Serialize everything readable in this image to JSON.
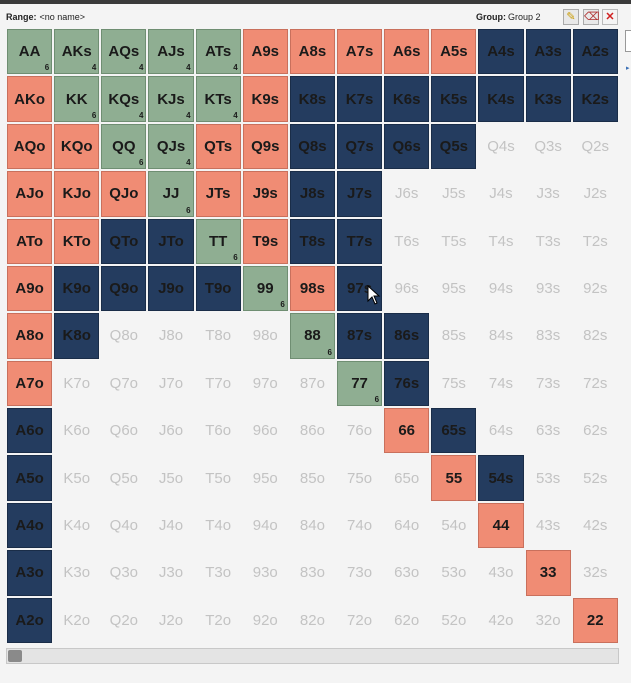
{
  "toolbar": {
    "range_label": "Range:",
    "range_value": "<no name>",
    "group_label": "Group:",
    "group_value": "Group 2"
  },
  "icons": {
    "edit": "pencil-icon",
    "clear": "eraser-icon",
    "close": "close-icon"
  },
  "colors": {
    "green": "#8fae92",
    "salmon": "#f08c74",
    "navy": "#243c5f",
    "empty_text": "#c3c3c3"
  },
  "grid": {
    "rows": [
      [
        [
          "AA",
          "green",
          "6"
        ],
        [
          "AKs",
          "green",
          "4"
        ],
        [
          "AQs",
          "green",
          "4"
        ],
        [
          "AJs",
          "green",
          "4"
        ],
        [
          "ATs",
          "green",
          "4"
        ],
        [
          "A9s",
          "salmon",
          ""
        ],
        [
          "A8s",
          "salmon",
          ""
        ],
        [
          "A7s",
          "salmon",
          ""
        ],
        [
          "A6s",
          "salmon",
          ""
        ],
        [
          "A5s",
          "salmon",
          ""
        ],
        [
          "A4s",
          "navy",
          ""
        ],
        [
          "A3s",
          "navy",
          ""
        ],
        [
          "A2s",
          "navy",
          ""
        ]
      ],
      [
        [
          "AKo",
          "salmon",
          ""
        ],
        [
          "KK",
          "green",
          "6"
        ],
        [
          "KQs",
          "green",
          "4"
        ],
        [
          "KJs",
          "green",
          "4"
        ],
        [
          "KTs",
          "green",
          "4"
        ],
        [
          "K9s",
          "salmon",
          ""
        ],
        [
          "K8s",
          "navy",
          ""
        ],
        [
          "K7s",
          "navy",
          ""
        ],
        [
          "K6s",
          "navy",
          ""
        ],
        [
          "K5s",
          "navy",
          ""
        ],
        [
          "K4s",
          "navy",
          ""
        ],
        [
          "K3s",
          "navy",
          ""
        ],
        [
          "K2s",
          "navy",
          ""
        ]
      ],
      [
        [
          "AQo",
          "salmon",
          ""
        ],
        [
          "KQo",
          "salmon",
          ""
        ],
        [
          "QQ",
          "green",
          "6"
        ],
        [
          "QJs",
          "green",
          "4"
        ],
        [
          "QTs",
          "salmon",
          ""
        ],
        [
          "Q9s",
          "salmon",
          ""
        ],
        [
          "Q8s",
          "navy",
          ""
        ],
        [
          "Q7s",
          "navy",
          ""
        ],
        [
          "Q6s",
          "navy",
          ""
        ],
        [
          "Q5s",
          "navy",
          ""
        ],
        [
          "Q4s",
          "empty",
          ""
        ],
        [
          "Q3s",
          "empty",
          ""
        ],
        [
          "Q2s",
          "empty",
          ""
        ]
      ],
      [
        [
          "AJo",
          "salmon",
          ""
        ],
        [
          "KJo",
          "salmon",
          ""
        ],
        [
          "QJo",
          "salmon",
          ""
        ],
        [
          "JJ",
          "green",
          "6"
        ],
        [
          "JTs",
          "salmon",
          ""
        ],
        [
          "J9s",
          "salmon",
          ""
        ],
        [
          "J8s",
          "navy",
          ""
        ],
        [
          "J7s",
          "navy",
          ""
        ],
        [
          "J6s",
          "empty",
          ""
        ],
        [
          "J5s",
          "empty",
          ""
        ],
        [
          "J4s",
          "empty",
          ""
        ],
        [
          "J3s",
          "empty",
          ""
        ],
        [
          "J2s",
          "empty",
          ""
        ]
      ],
      [
        [
          "ATo",
          "salmon",
          ""
        ],
        [
          "KTo",
          "salmon",
          ""
        ],
        [
          "QTo",
          "navy",
          ""
        ],
        [
          "JTo",
          "navy",
          ""
        ],
        [
          "TT",
          "green",
          "6"
        ],
        [
          "T9s",
          "salmon",
          ""
        ],
        [
          "T8s",
          "navy",
          ""
        ],
        [
          "T7s",
          "navy",
          ""
        ],
        [
          "T6s",
          "empty",
          ""
        ],
        [
          "T5s",
          "empty",
          ""
        ],
        [
          "T4s",
          "empty",
          ""
        ],
        [
          "T3s",
          "empty",
          ""
        ],
        [
          "T2s",
          "empty",
          ""
        ]
      ],
      [
        [
          "A9o",
          "salmon",
          ""
        ],
        [
          "K9o",
          "navy",
          ""
        ],
        [
          "Q9o",
          "navy",
          ""
        ],
        [
          "J9o",
          "navy",
          ""
        ],
        [
          "T9o",
          "navy",
          ""
        ],
        [
          "99",
          "green",
          "6"
        ],
        [
          "98s",
          "salmon",
          ""
        ],
        [
          "97s",
          "navy",
          ""
        ],
        [
          "96s",
          "empty",
          ""
        ],
        [
          "95s",
          "empty",
          ""
        ],
        [
          "94s",
          "empty",
          ""
        ],
        [
          "93s",
          "empty",
          ""
        ],
        [
          "92s",
          "empty",
          ""
        ]
      ],
      [
        [
          "A8o",
          "salmon",
          ""
        ],
        [
          "K8o",
          "navy",
          ""
        ],
        [
          "Q8o",
          "empty",
          ""
        ],
        [
          "J8o",
          "empty",
          ""
        ],
        [
          "T8o",
          "empty",
          ""
        ],
        [
          "98o",
          "empty",
          ""
        ],
        [
          "88",
          "green",
          "6"
        ],
        [
          "87s",
          "navy",
          ""
        ],
        [
          "86s",
          "navy",
          ""
        ],
        [
          "85s",
          "empty",
          ""
        ],
        [
          "84s",
          "empty",
          ""
        ],
        [
          "83s",
          "empty",
          ""
        ],
        [
          "82s",
          "empty",
          ""
        ]
      ],
      [
        [
          "A7o",
          "salmon",
          ""
        ],
        [
          "K7o",
          "empty",
          ""
        ],
        [
          "Q7o",
          "empty",
          ""
        ],
        [
          "J7o",
          "empty",
          ""
        ],
        [
          "T7o",
          "empty",
          ""
        ],
        [
          "97o",
          "empty",
          ""
        ],
        [
          "87o",
          "empty",
          ""
        ],
        [
          "77",
          "green",
          "6"
        ],
        [
          "76s",
          "navy",
          ""
        ],
        [
          "75s",
          "empty",
          ""
        ],
        [
          "74s",
          "empty",
          ""
        ],
        [
          "73s",
          "empty",
          ""
        ],
        [
          "72s",
          "empty",
          ""
        ]
      ],
      [
        [
          "A6o",
          "navy",
          ""
        ],
        [
          "K6o",
          "empty",
          ""
        ],
        [
          "Q6o",
          "empty",
          ""
        ],
        [
          "J6o",
          "empty",
          ""
        ],
        [
          "T6o",
          "empty",
          ""
        ],
        [
          "96o",
          "empty",
          ""
        ],
        [
          "86o",
          "empty",
          ""
        ],
        [
          "76o",
          "empty",
          ""
        ],
        [
          "66",
          "salmon",
          ""
        ],
        [
          "65s",
          "navy",
          ""
        ],
        [
          "64s",
          "empty",
          ""
        ],
        [
          "63s",
          "empty",
          ""
        ],
        [
          "62s",
          "empty",
          ""
        ]
      ],
      [
        [
          "A5o",
          "navy",
          ""
        ],
        [
          "K5o",
          "empty",
          ""
        ],
        [
          "Q5o",
          "empty",
          ""
        ],
        [
          "J5o",
          "empty",
          ""
        ],
        [
          "T5o",
          "empty",
          ""
        ],
        [
          "95o",
          "empty",
          ""
        ],
        [
          "85o",
          "empty",
          ""
        ],
        [
          "75o",
          "empty",
          ""
        ],
        [
          "65o",
          "empty",
          ""
        ],
        [
          "55",
          "salmon",
          ""
        ],
        [
          "54s",
          "navy",
          ""
        ],
        [
          "53s",
          "empty",
          ""
        ],
        [
          "52s",
          "empty",
          ""
        ]
      ],
      [
        [
          "A4o",
          "navy",
          ""
        ],
        [
          "K4o",
          "empty",
          ""
        ],
        [
          "Q4o",
          "empty",
          ""
        ],
        [
          "J4o",
          "empty",
          ""
        ],
        [
          "T4o",
          "empty",
          ""
        ],
        [
          "94o",
          "empty",
          ""
        ],
        [
          "84o",
          "empty",
          ""
        ],
        [
          "74o",
          "empty",
          ""
        ],
        [
          "64o",
          "empty",
          ""
        ],
        [
          "54o",
          "empty",
          ""
        ],
        [
          "44",
          "salmon",
          ""
        ],
        [
          "43s",
          "empty",
          ""
        ],
        [
          "42s",
          "empty",
          ""
        ]
      ],
      [
        [
          "A3o",
          "navy",
          ""
        ],
        [
          "K3o",
          "empty",
          ""
        ],
        [
          "Q3o",
          "empty",
          ""
        ],
        [
          "J3o",
          "empty",
          ""
        ],
        [
          "T3o",
          "empty",
          ""
        ],
        [
          "93o",
          "empty",
          ""
        ],
        [
          "83o",
          "empty",
          ""
        ],
        [
          "73o",
          "empty",
          ""
        ],
        [
          "63o",
          "empty",
          ""
        ],
        [
          "53o",
          "empty",
          ""
        ],
        [
          "43o",
          "empty",
          ""
        ],
        [
          "33",
          "salmon",
          ""
        ],
        [
          "32s",
          "empty",
          ""
        ]
      ],
      [
        [
          "A2o",
          "navy",
          ""
        ],
        [
          "K2o",
          "empty",
          ""
        ],
        [
          "Q2o",
          "empty",
          ""
        ],
        [
          "J2o",
          "empty",
          ""
        ],
        [
          "T2o",
          "empty",
          ""
        ],
        [
          "92o",
          "empty",
          ""
        ],
        [
          "82o",
          "empty",
          ""
        ],
        [
          "72o",
          "empty",
          ""
        ],
        [
          "62o",
          "empty",
          ""
        ],
        [
          "52o",
          "empty",
          ""
        ],
        [
          "42o",
          "empty",
          ""
        ],
        [
          "32o",
          "empty",
          ""
        ],
        [
          "22",
          "salmon",
          ""
        ]
      ]
    ]
  }
}
